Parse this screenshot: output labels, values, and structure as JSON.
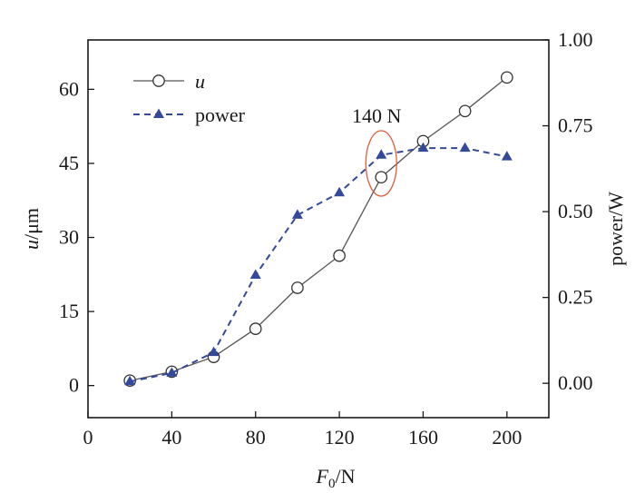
{
  "chart_data": {
    "type": "line",
    "x": [
      20,
      40,
      60,
      80,
      100,
      120,
      140,
      160,
      180,
      200
    ],
    "xlim": [
      0,
      220
    ],
    "xticks": [
      0,
      40,
      80,
      120,
      160,
      200
    ],
    "xtick_labels": [
      "0",
      "40",
      "80",
      "120",
      "160",
      "200"
    ],
    "xlabel_main": "F",
    "xlabel_sub": "0",
    "xlabel_unit": "/N",
    "left_axis": {
      "label_var": "u",
      "label_unit": "/μm",
      "ylim": [
        -6.5,
        70
      ],
      "ticks": [
        0,
        15,
        30,
        45,
        60
      ],
      "tick_labels": [
        "0",
        "15",
        "30",
        "45",
        "60"
      ]
    },
    "right_axis": {
      "label": "power/W",
      "ylim": [
        -0.1,
        1.0
      ],
      "ticks": [
        0.0,
        0.25,
        0.5,
        0.75,
        1.0
      ],
      "tick_labels": [
        "0.00",
        "0.25",
        "0.50",
        "0.75",
        "1.00"
      ]
    },
    "series": [
      {
        "name": "u",
        "axis": "left",
        "marker": "open-circle",
        "line": "solid",
        "color": "#555555",
        "values": [
          1.0,
          2.8,
          5.8,
          11.5,
          19.8,
          26.3,
          42.2,
          49.5,
          55.6,
          62.4
        ]
      },
      {
        "name": "power",
        "axis": "right",
        "marker": "filled-triangle",
        "line": "dashed",
        "color": "#34499a",
        "values": [
          0.005,
          0.03,
          0.09,
          0.315,
          0.49,
          0.555,
          0.665,
          0.685,
          0.685,
          0.66
        ]
      }
    ],
    "legend_position": "top-left",
    "annotation": {
      "text": "140 N",
      "x": 140,
      "ellipse_color": "#e35a3c"
    },
    "grid": false
  }
}
